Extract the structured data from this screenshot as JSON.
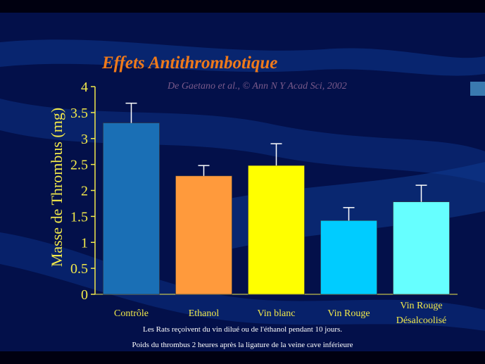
{
  "slide": {
    "title": "Effets Antithrombotique",
    "subtitle": "De Gaetano et al., © Ann N Y Acad Sci, 2002",
    "footnote_1": "Les Rats reçoivent du vin dilué ou de l'éthanol pendant 10 jours.",
    "footnote_2": "Poids du thrombus 2 heures après la ligature de la veine cave inférieure"
  },
  "chart_data": {
    "type": "bar",
    "title": "Effets Antithrombotique",
    "ylabel": "Masse de Thrombus (mg)",
    "xlabel": "",
    "ylim": [
      0,
      4
    ],
    "yticks": [
      "0",
      "0.5",
      "1",
      "1.5",
      "2",
      "2.5",
      "3",
      "3.5",
      "4"
    ],
    "categories": [
      {
        "label": "Contrôle",
        "label2": ""
      },
      {
        "label": "Ethanol",
        "label2": ""
      },
      {
        "label": "Vin blanc",
        "label2": ""
      },
      {
        "label": "Vin Rouge",
        "label2": ""
      },
      {
        "label": "Vin Rouge",
        "label2": "Désalcoolisé"
      }
    ],
    "values": [
      3.3,
      2.28,
      2.48,
      1.42,
      1.78
    ],
    "errors": [
      0.38,
      0.2,
      0.42,
      0.25,
      0.32
    ],
    "colors": [
      "#1a6fb5",
      "#ff9a3c",
      "#ffff00",
      "#00ccff",
      "#66ffff"
    ]
  }
}
